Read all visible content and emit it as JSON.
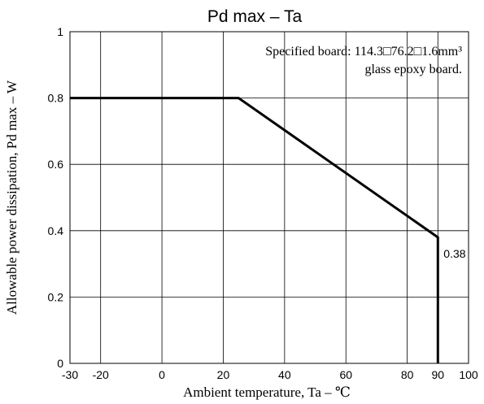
{
  "chart_data": {
    "type": "line",
    "title": "Pd max – Ta",
    "xlabel": "Ambient temperature, Ta –  ℃",
    "ylabel": "Allowable power dissipation, Pd max – W",
    "xlim": [
      -30,
      100
    ],
    "ylim": [
      0,
      1
    ],
    "x_ticks": [
      -30,
      -20,
      0,
      20,
      40,
      60,
      80,
      90,
      100
    ],
    "x_tick_labels": [
      "-30",
      "-20",
      "0",
      "20",
      "40",
      "60",
      "80",
      "90",
      "100"
    ],
    "y_ticks": [
      0,
      0.2,
      0.4,
      0.6,
      0.8,
      1
    ],
    "y_tick_labels": [
      "0",
      "0.2",
      "0.4",
      "0.6",
      "0.8",
      "1"
    ],
    "grid": true,
    "series": [
      {
        "x": [
          -30,
          25,
          90,
          90
        ],
        "y": [
          0.8,
          0.8,
          0.38,
          0
        ]
      }
    ],
    "annotations": [
      {
        "text": "Specified board: 114.3□76.2□1.6mm³",
        "position": "top-right"
      },
      {
        "text": "glass epoxy board.",
        "position": "top-right"
      },
      {
        "text": "0.38",
        "x": 90,
        "y": 0.38
      }
    ],
    "colors": {
      "line": "#000000",
      "grid": "#000000"
    }
  }
}
